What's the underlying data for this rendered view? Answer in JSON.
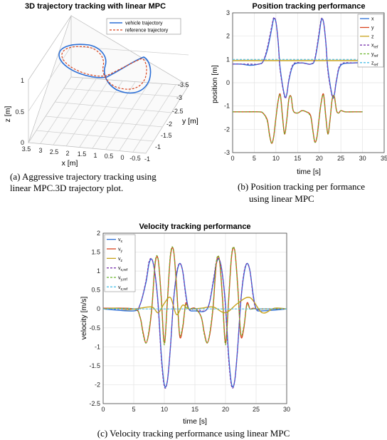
{
  "chart_data": [
    {
      "id": "a",
      "type": "line3d",
      "title": "3D trajectory tracking with linear MPC",
      "caption": [
        "(a) Aggressive trajectory tracking using",
        "linear MPC.3D trajectory plot."
      ],
      "xlabel": "x [m]",
      "ylabel": "y [m]",
      "zlabel": "z [m]",
      "x_ticks": [
        "3.5",
        "3",
        "2.5",
        "2",
        "1.5",
        "1",
        "0.5",
        "0",
        "-0.5",
        "-1"
      ],
      "y_ticks": [
        "-3.5",
        "-3",
        "-2.5",
        "-2",
        "-1.5",
        "-1"
      ],
      "z_ticks": [
        "1",
        "0.5",
        "0"
      ],
      "legend": [
        "vehicle trajectory",
        "reference trajectory"
      ],
      "legend_position": "top-right",
      "grid": true,
      "colors": [
        "#2c6fd6",
        "#d9451f"
      ]
    },
    {
      "id": "b",
      "type": "line",
      "title": "Position tracking performance",
      "caption": [
        "(b) Position tracking per formance",
        "using linear MPC"
      ],
      "xlabel": "time [s]",
      "ylabel": "position [m]",
      "xlim": [
        0,
        35
      ],
      "ylim": [
        -3,
        3
      ],
      "x_ticks": [
        "0",
        "5",
        "10",
        "15",
        "20",
        "25",
        "30",
        "35"
      ],
      "y_ticks": [
        "3",
        "2",
        "1",
        "0",
        "-1",
        "-2",
        "-3"
      ],
      "legend": [
        {
          "main": "x",
          "sub": ""
        },
        {
          "main": "y",
          "sub": ""
        },
        {
          "main": "z",
          "sub": ""
        },
        {
          "main": "x",
          "sub": "ref"
        },
        {
          "main": "y",
          "sub": "ref"
        },
        {
          "main": "z",
          "sub": "ref"
        }
      ],
      "legend_position": "top-right",
      "grid": true,
      "colors": [
        "#2c6fd6",
        "#d9451f",
        "#c8a21a",
        "#7e3cb0",
        "#6bb52d",
        "#4fc1e8"
      ],
      "series": [
        {
          "name": "x",
          "x": [
            0,
            2,
            4,
            6,
            7,
            8,
            9,
            9.5,
            10,
            10.5,
            11,
            12,
            12.5,
            13,
            14,
            16,
            18,
            19,
            20,
            20.5,
            21,
            21.5,
            22,
            23,
            23.5,
            24,
            25,
            28,
            30
          ],
          "y": [
            0.8,
            0.8,
            0.75,
            0.8,
            0.9,
            1.4,
            2.3,
            2.75,
            2.6,
            1.8,
            0.6,
            -0.55,
            -0.5,
            0.1,
            0.75,
            0.85,
            0.8,
            1.0,
            2.1,
            2.7,
            2.6,
            1.8,
            0.6,
            -0.55,
            -0.5,
            0.1,
            0.75,
            0.85,
            0.85
          ]
        },
        {
          "name": "y",
          "x": [
            0,
            3,
            6,
            7,
            8,
            8.5,
            9,
            9.5,
            10,
            10.5,
            11,
            11.5,
            12,
            12.5,
            13,
            13.5,
            14,
            15,
            16,
            17,
            18,
            18.5,
            19,
            19.5,
            20,
            20.5,
            21,
            21.5,
            22,
            22.5,
            23,
            23.5,
            24,
            24.5,
            25,
            26,
            28,
            30
          ],
          "y": [
            -1.25,
            -1.25,
            -1.25,
            -1.3,
            -1.6,
            -2.2,
            -2.6,
            -2.3,
            -1.5,
            -0.8,
            -0.5,
            -1.4,
            -2.2,
            -1.6,
            -0.7,
            -0.6,
            -1.2,
            -1.3,
            -1.2,
            -1.25,
            -1.4,
            -2.0,
            -2.55,
            -2.3,
            -1.5,
            -0.8,
            -0.5,
            -1.4,
            -2.2,
            -1.6,
            -0.7,
            -0.6,
            -1.2,
            -1.3,
            -1.2,
            -1.25,
            -1.25,
            -1.25
          ]
        },
        {
          "name": "z",
          "x": [
            0,
            5,
            10,
            15,
            20,
            25,
            30
          ],
          "y": [
            0.95,
            0.95,
            0.95,
            0.95,
            0.95,
            0.95,
            0.95
          ]
        },
        {
          "name": "x_ref",
          "x": [
            0,
            2,
            4,
            6,
            7,
            8,
            9,
            9.5,
            10,
            10.5,
            11,
            12,
            12.5,
            13,
            14,
            16,
            18,
            19,
            20,
            20.5,
            21,
            21.5,
            22,
            23,
            23.5,
            24,
            25,
            28,
            30
          ],
          "y": [
            0.8,
            0.8,
            0.8,
            0.8,
            0.9,
            1.5,
            2.4,
            2.8,
            2.6,
            1.8,
            0.5,
            -0.6,
            -0.5,
            0.15,
            0.8,
            0.85,
            0.8,
            1.05,
            2.2,
            2.75,
            2.6,
            1.8,
            0.5,
            -0.6,
            -0.5,
            0.15,
            0.8,
            0.85,
            0.85
          ]
        },
        {
          "name": "y_ref",
          "x": [
            0,
            3,
            6,
            7,
            8,
            8.5,
            9,
            9.5,
            10,
            10.5,
            11,
            11.5,
            12,
            12.5,
            13,
            13.5,
            14,
            15,
            16,
            17,
            18,
            18.5,
            19,
            19.5,
            20,
            20.5,
            21,
            21.5,
            22,
            22.5,
            23,
            23.5,
            24,
            24.5,
            25,
            26,
            28,
            30
          ],
          "y": [
            -1.25,
            -1.25,
            -1.25,
            -1.3,
            -1.65,
            -2.25,
            -2.6,
            -2.3,
            -1.5,
            -0.8,
            -0.55,
            -1.45,
            -2.2,
            -1.6,
            -0.7,
            -0.6,
            -1.2,
            -1.3,
            -1.2,
            -1.25,
            -1.45,
            -2.05,
            -2.55,
            -2.3,
            -1.5,
            -0.8,
            -0.55,
            -1.45,
            -2.2,
            -1.6,
            -0.7,
            -0.6,
            -1.2,
            -1.3,
            -1.2,
            -1.25,
            -1.25,
            -1.25
          ]
        },
        {
          "name": "z_ref",
          "x": [
            0,
            5,
            10,
            15,
            20,
            25,
            30
          ],
          "y": [
            1.0,
            1.0,
            1.0,
            1.0,
            1.0,
            1.0,
            1.0
          ]
        }
      ]
    },
    {
      "id": "c",
      "type": "line",
      "title": "Velocity tracking performance",
      "caption": [
        "(c) Velocity tracking performance using linear MPC"
      ],
      "xlabel": "time [s]",
      "ylabel": "velocity [m/s]",
      "xlim": [
        0,
        30
      ],
      "ylim": [
        -2.5,
        2
      ],
      "x_ticks": [
        "0",
        "5",
        "10",
        "15",
        "20",
        "25",
        "30"
      ],
      "y_ticks": [
        "2",
        "1.5",
        "1",
        "0.5",
        "0",
        "-0.5",
        "-1",
        "-1.5",
        "-2",
        "-2.5"
      ],
      "legend": [
        {
          "main": "v",
          "sub": "x"
        },
        {
          "main": "v",
          "sub": "y"
        },
        {
          "main": "v",
          "sub": "z"
        },
        {
          "main": "v",
          "sub": "x,ref"
        },
        {
          "main": "v",
          "sub": "y,ref"
        },
        {
          "main": "v",
          "sub": "z,ref"
        }
      ],
      "legend_position": "top-left",
      "grid": true,
      "colors": [
        "#2c6fd6",
        "#d9451f",
        "#c8a21a",
        "#7e3cb0",
        "#6bb52d",
        "#4fc1e8"
      ],
      "series": [
        {
          "name": "v_x",
          "x": [
            0,
            5,
            6,
            7,
            7.5,
            8,
            8.5,
            9,
            9.5,
            10,
            10.5,
            11,
            11.5,
            12,
            12.5,
            13,
            13.5,
            14,
            15,
            17,
            18,
            18.5,
            19,
            19.5,
            20,
            20.5,
            21,
            21.5,
            22,
            22.5,
            23,
            23.5,
            24,
            24.5,
            25,
            26,
            30
          ],
          "y": [
            0,
            -0.05,
            0.1,
            0.7,
            1.2,
            1.3,
            0.9,
            0.1,
            -1.2,
            -2.0,
            -1.9,
            -1.0,
            0.2,
            0.9,
            1.2,
            1.0,
            0.4,
            0,
            -0.05,
            0,
            0.7,
            1.2,
            1.3,
            0.9,
            0.1,
            -1.2,
            -2.0,
            -1.9,
            -1.0,
            0.2,
            0.9,
            1.2,
            1.0,
            0.4,
            0,
            -0.05,
            0
          ]
        },
        {
          "name": "v_y",
          "x": [
            0,
            5,
            6,
            6.5,
            7,
            7.5,
            8,
            8.5,
            9,
            9.5,
            10,
            10.5,
            11,
            11.5,
            12,
            12.5,
            13,
            13.5,
            14,
            15,
            16,
            16.5,
            17,
            17.5,
            18,
            18.5,
            19,
            19.5,
            20,
            20.5,
            21,
            21.5,
            22,
            22.5,
            23,
            23.5,
            24,
            24.5,
            25,
            26,
            30
          ],
          "y": [
            0.02,
            0,
            -0.2,
            -0.6,
            -0.9,
            -0.6,
            0.1,
            1.2,
            1.3,
            0.3,
            -0.9,
            0.2,
            1.4,
            1.55,
            0.6,
            -0.7,
            -0.5,
            0.15,
            0,
            0.02,
            -0.2,
            -0.6,
            -0.9,
            -0.6,
            0.1,
            1.2,
            1.3,
            0.3,
            -0.9,
            0.2,
            1.4,
            1.55,
            0.6,
            -0.7,
            -0.5,
            0.15,
            0,
            0.02,
            0,
            0,
            0
          ]
        },
        {
          "name": "v_z",
          "x": [
            0,
            2,
            4,
            6,
            8,
            9,
            10,
            11,
            12,
            13,
            14,
            16,
            18,
            20,
            22,
            24,
            26,
            28,
            30
          ],
          "y": [
            0,
            0.02,
            -0.02,
            0.02,
            0.05,
            -0.1,
            0.15,
            0.3,
            -0.15,
            0.1,
            0,
            0.02,
            0.05,
            -0.1,
            0.15,
            0.3,
            -0.1,
            0.02,
            0
          ]
        },
        {
          "name": "v_x_ref",
          "x": [
            0,
            5,
            6,
            7,
            7.5,
            8,
            8.5,
            9,
            9.5,
            10,
            10.5,
            11,
            11.5,
            12,
            12.5,
            13,
            13.5,
            14,
            15,
            17,
            18,
            18.5,
            19,
            19.5,
            20,
            20.5,
            21,
            21.5,
            22,
            22.5,
            23,
            23.5,
            24,
            24.5,
            25,
            26,
            30
          ],
          "y": [
            0,
            0,
            0.1,
            0.75,
            1.25,
            1.3,
            0.9,
            0.05,
            -1.3,
            -2.05,
            -1.9,
            -1.0,
            0.2,
            0.95,
            1.2,
            1.0,
            0.35,
            0,
            0,
            0,
            0.75,
            1.25,
            1.3,
            0.9,
            0.05,
            -1.3,
            -2.05,
            -1.9,
            -1.0,
            0.2,
            0.95,
            1.2,
            1.0,
            0.35,
            0,
            0,
            0
          ]
        },
        {
          "name": "v_y_ref",
          "x": [
            0,
            5,
            6,
            6.5,
            7,
            7.5,
            8,
            8.5,
            9,
            9.5,
            10,
            10.5,
            11,
            11.5,
            12,
            12.5,
            13,
            13.5,
            14,
            15,
            16,
            16.5,
            17,
            17.5,
            18,
            18.5,
            19,
            19.5,
            20,
            20.5,
            21,
            21.5,
            22,
            22.5,
            23,
            23.5,
            24,
            24.5,
            25,
            26,
            30
          ],
          "y": [
            0,
            0,
            -0.2,
            -0.65,
            -0.9,
            -0.55,
            0.15,
            1.25,
            1.3,
            0.25,
            -0.95,
            0.25,
            1.45,
            1.55,
            0.55,
            -0.65,
            -0.45,
            0.1,
            0,
            0,
            -0.2,
            -0.65,
            -0.9,
            -0.55,
            0.15,
            1.25,
            1.3,
            0.25,
            -0.95,
            0.25,
            1.45,
            1.55,
            0.55,
            -0.65,
            -0.45,
            0.1,
            0,
            0,
            0,
            0,
            0
          ]
        },
        {
          "name": "v_z_ref",
          "x": [
            0,
            30
          ],
          "y": [
            0,
            0
          ]
        }
      ]
    }
  ]
}
